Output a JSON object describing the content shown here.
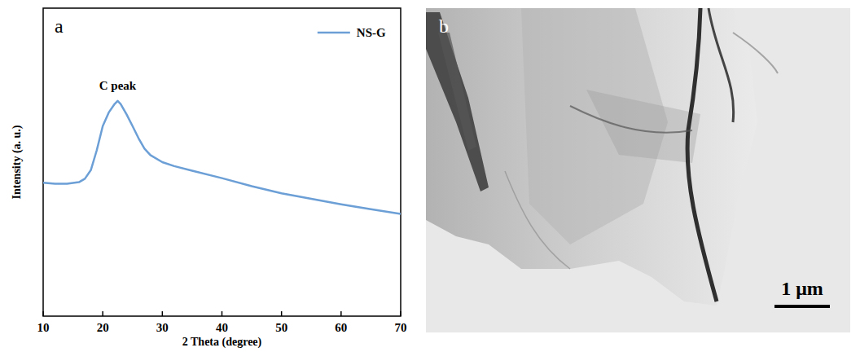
{
  "chart_data": {
    "type": "line",
    "panel": "a",
    "x_label": "2 Theta (degree)",
    "y_label": "Intensity (a. u.)",
    "annotations": [
      "C peak"
    ],
    "x": [
      10,
      12,
      14,
      16,
      17,
      18,
      19,
      20,
      21,
      22,
      22.5,
      23,
      24,
      25,
      26,
      27,
      28,
      30,
      32,
      35,
      40,
      45,
      50,
      55,
      60,
      65,
      70
    ],
    "series": [
      {
        "name": "NS-G",
        "color": "#6b9fd6",
        "values": [
          43.3,
          43.0,
          43.0,
          43.5,
          44.6,
          47.4,
          53.9,
          61.7,
          66.1,
          68.9,
          69.9,
          68.9,
          65.5,
          61.7,
          57.8,
          54.4,
          52.3,
          50.0,
          48.7,
          47.2,
          44.8,
          42.2,
          39.9,
          38.1,
          36.3,
          34.7,
          33.2
        ]
      }
    ],
    "xlim": [
      10,
      70
    ],
    "xticks": [
      10,
      20,
      30,
      40,
      50,
      60,
      70
    ],
    "ylim": [
      0,
      100
    ],
    "tick_labels": "x",
    "legend": "top right",
    "grid": false
  },
  "image": {
    "panel": "b",
    "scale_bar": "1 μm"
  }
}
